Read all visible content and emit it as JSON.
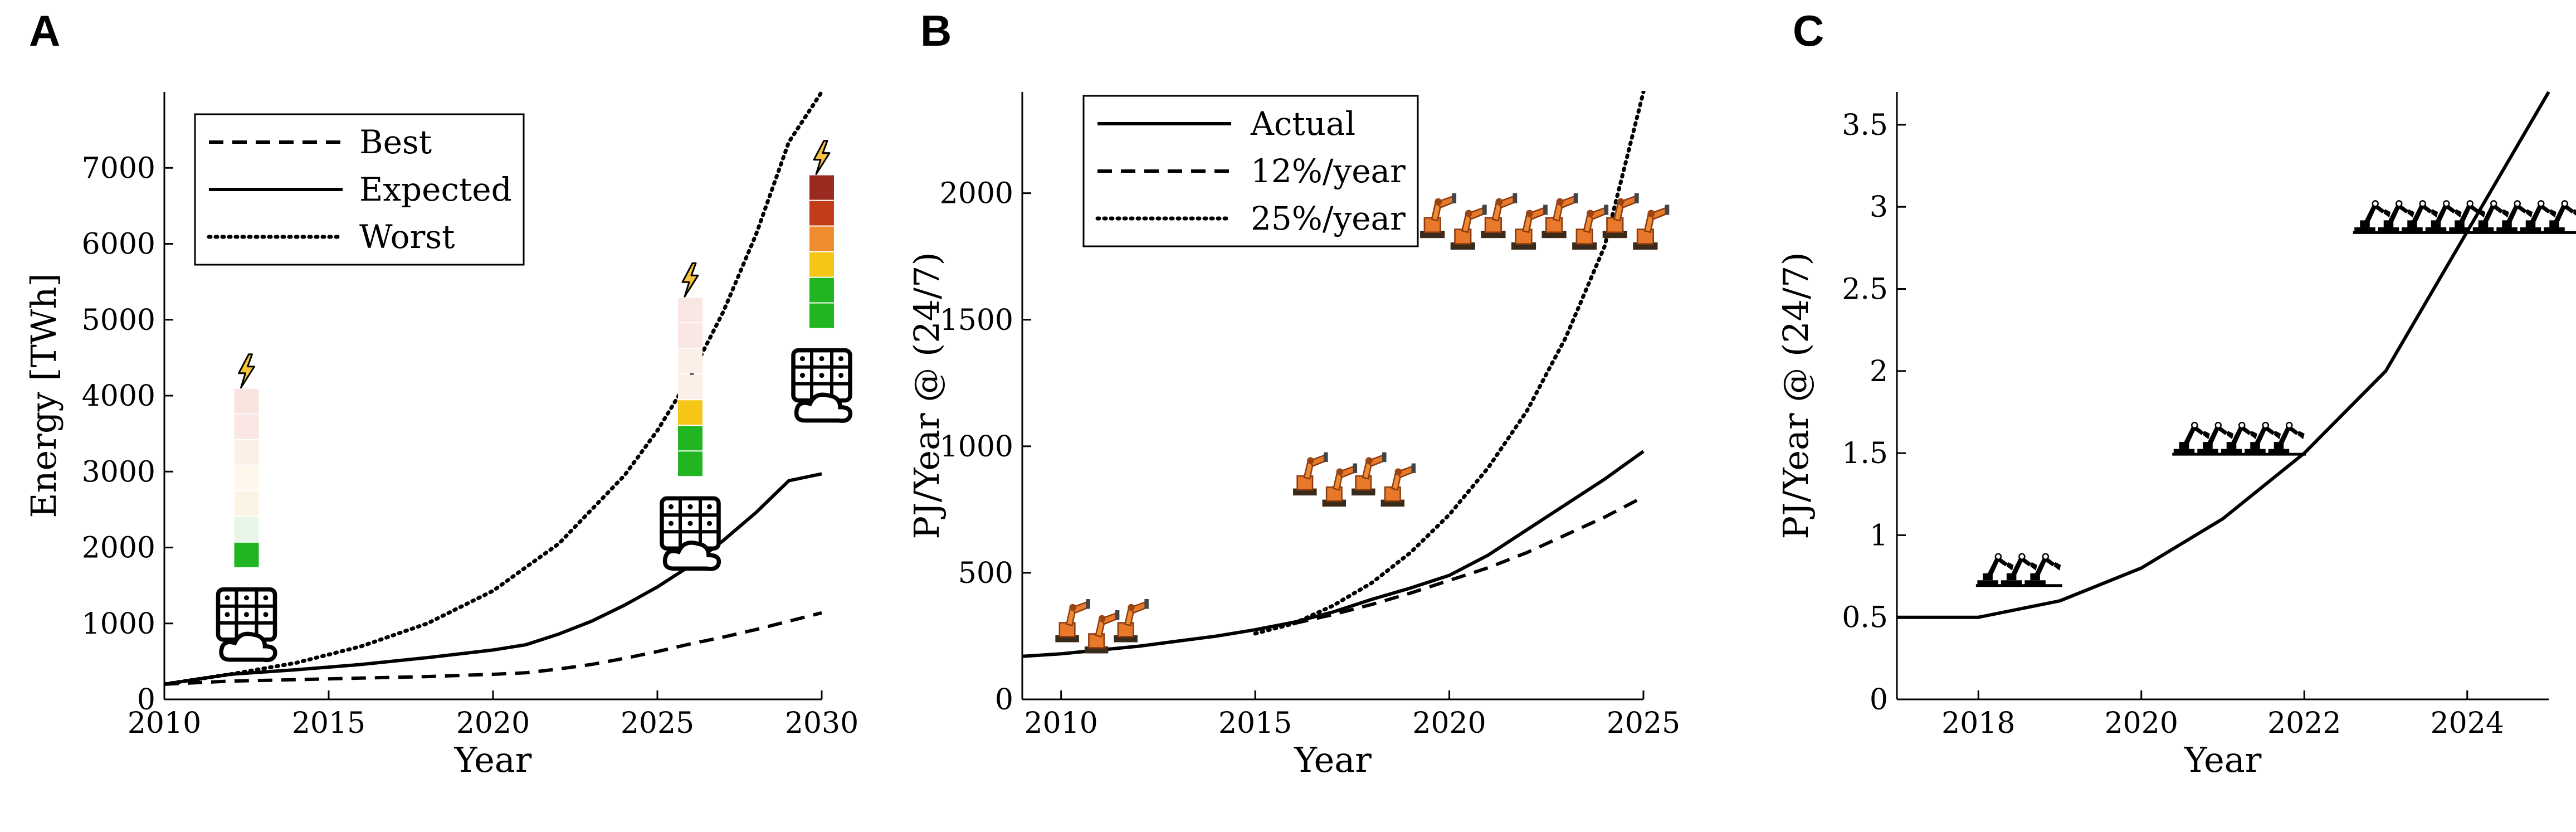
{
  "chart_data": [
    {
      "panel": "A",
      "type": "line",
      "xlabel": "Year",
      "ylabel": "Energy [TWh]",
      "xlim": [
        2010,
        2030
      ],
      "ylim": [
        0,
        8000
      ],
      "xticks": [
        "2010",
        "2015",
        "2020",
        "2025",
        "2030"
      ],
      "yticks": [
        "0",
        "1000",
        "2000",
        "3000",
        "4000",
        "5000",
        "6000",
        "7000"
      ],
      "grid": false,
      "legend_position": "top-left",
      "series": [
        {
          "name": "Best",
          "style": "dashed",
          "x": [
            2010,
            2012,
            2014,
            2016,
            2018,
            2020,
            2021,
            2022,
            2023,
            2024,
            2025,
            2026,
            2027,
            2028,
            2029,
            2030
          ],
          "y": [
            200,
            240,
            260,
            280,
            300,
            330,
            350,
            400,
            460,
            540,
            630,
            730,
            820,
            920,
            1030,
            1140
          ]
        },
        {
          "name": "Expected",
          "style": "solid",
          "x": [
            2010,
            2012,
            2014,
            2016,
            2018,
            2020,
            2021,
            2022,
            2023,
            2024,
            2025,
            2026,
            2027,
            2028,
            2029,
            2030
          ],
          "y": [
            200,
            330,
            390,
            460,
            550,
            650,
            720,
            860,
            1030,
            1240,
            1480,
            1760,
            2090,
            2460,
            2880,
            2970
          ]
        },
        {
          "name": "Worst",
          "style": "dotted",
          "x": [
            2010,
            2012,
            2014,
            2016,
            2018,
            2020,
            2022,
            2024,
            2025,
            2026,
            2027,
            2028,
            2029,
            2030
          ],
          "y": [
            200,
            330,
            480,
            700,
            1000,
            1430,
            2050,
            2950,
            3540,
            4250,
            5100,
            6120,
            7340,
            8000
          ]
        }
      ],
      "bars": [
        {
          "year": 2012.5,
          "expected_value": 1800,
          "segments": [
            "#22b522",
            "#e8f6e8",
            "#fbf3e3",
            "#fdf7ec",
            "#fbefe8",
            "#fae6e2",
            "#f9e3df"
          ]
        },
        {
          "year": 2026,
          "expected_value": 3000,
          "segments": [
            "#22b522",
            "#22b522",
            "#f5c518",
            "#fbefe8",
            "#fbefe8",
            "#fae6e2",
            "#fae6e2"
          ]
        },
        {
          "year": 2030,
          "expected_value": 4950,
          "segments": [
            "#22b522",
            "#22b522",
            "#f5c518",
            "#ef8c2f",
            "#c33c1a",
            "#9b2a1f"
          ]
        }
      ]
    },
    {
      "panel": "B",
      "type": "line",
      "xlabel": "Year",
      "ylabel": "PJ/Year @ (24/7)",
      "xlim": [
        2009,
        2025
      ],
      "ylim": [
        0,
        2400
      ],
      "xticks": [
        "2010",
        "2015",
        "2020",
        "2025"
      ],
      "yticks": [
        "0",
        "500",
        "1000",
        "1500",
        "2000"
      ],
      "grid": false,
      "legend_position": "top-left",
      "series": [
        {
          "name": "Actual",
          "style": "solid",
          "x": [
            2009,
            2010,
            2011,
            2012,
            2013,
            2014,
            2015,
            2016,
            2017,
            2018,
            2019,
            2020,
            2021,
            2022,
            2023,
            2024,
            2025
          ],
          "y": [
            170,
            180,
            195,
            210,
            230,
            250,
            275,
            305,
            345,
            395,
            440,
            490,
            570,
            670,
            770,
            870,
            980
          ]
        },
        {
          "name": "12%/year",
          "style": "dashed",
          "x": [
            2016,
            2017,
            2018,
            2019,
            2020,
            2021,
            2022,
            2023,
            2024,
            2025
          ],
          "y": [
            300,
            335,
            375,
            420,
            470,
            520,
            580,
            650,
            720,
            800
          ]
        },
        {
          "name": "25%/year",
          "style": "dotted",
          "x": [
            2015,
            2016,
            2017,
            2018,
            2019,
            2020,
            2021,
            2022,
            2023,
            2024,
            2025
          ],
          "y": [
            260,
            300,
            370,
            460,
            580,
            730,
            915,
            1140,
            1430,
            1790,
            2400
          ]
        }
      ]
    },
    {
      "panel": "C",
      "type": "line",
      "xlabel": "Year",
      "ylabel": "PJ/Year @ (24/7)",
      "xlim": [
        2017,
        2025
      ],
      "ylim": [
        0,
        3.7
      ],
      "xticks": [
        "2018",
        "2020",
        "2022",
        "2024"
      ],
      "yticks": [
        "0",
        "0.5",
        "1",
        "1.5",
        "2",
        "2.5",
        "3",
        "3.5"
      ],
      "grid": false,
      "series": [
        {
          "name": "",
          "style": "solid",
          "x": [
            2017,
            2018,
            2019,
            2020,
            2021,
            2022,
            2023,
            2024,
            2025
          ],
          "y": [
            0.5,
            0.5,
            0.6,
            0.8,
            1.1,
            1.5,
            2.0,
            2.85,
            3.7
          ]
        }
      ]
    }
  ],
  "panels": {
    "a_label": "A",
    "b_label": "B",
    "c_label": "C"
  },
  "icons": {
    "datacenter": "server-cloud-icon",
    "power": "lightning-bolt-icon",
    "robots": "orange-industrial-robot-arm-icon",
    "arms": "black-robot-arm-icon"
  },
  "colors": {
    "line": "#000000",
    "bolt_fill": "#f7c43d",
    "robot_orange": "#e8782a"
  }
}
